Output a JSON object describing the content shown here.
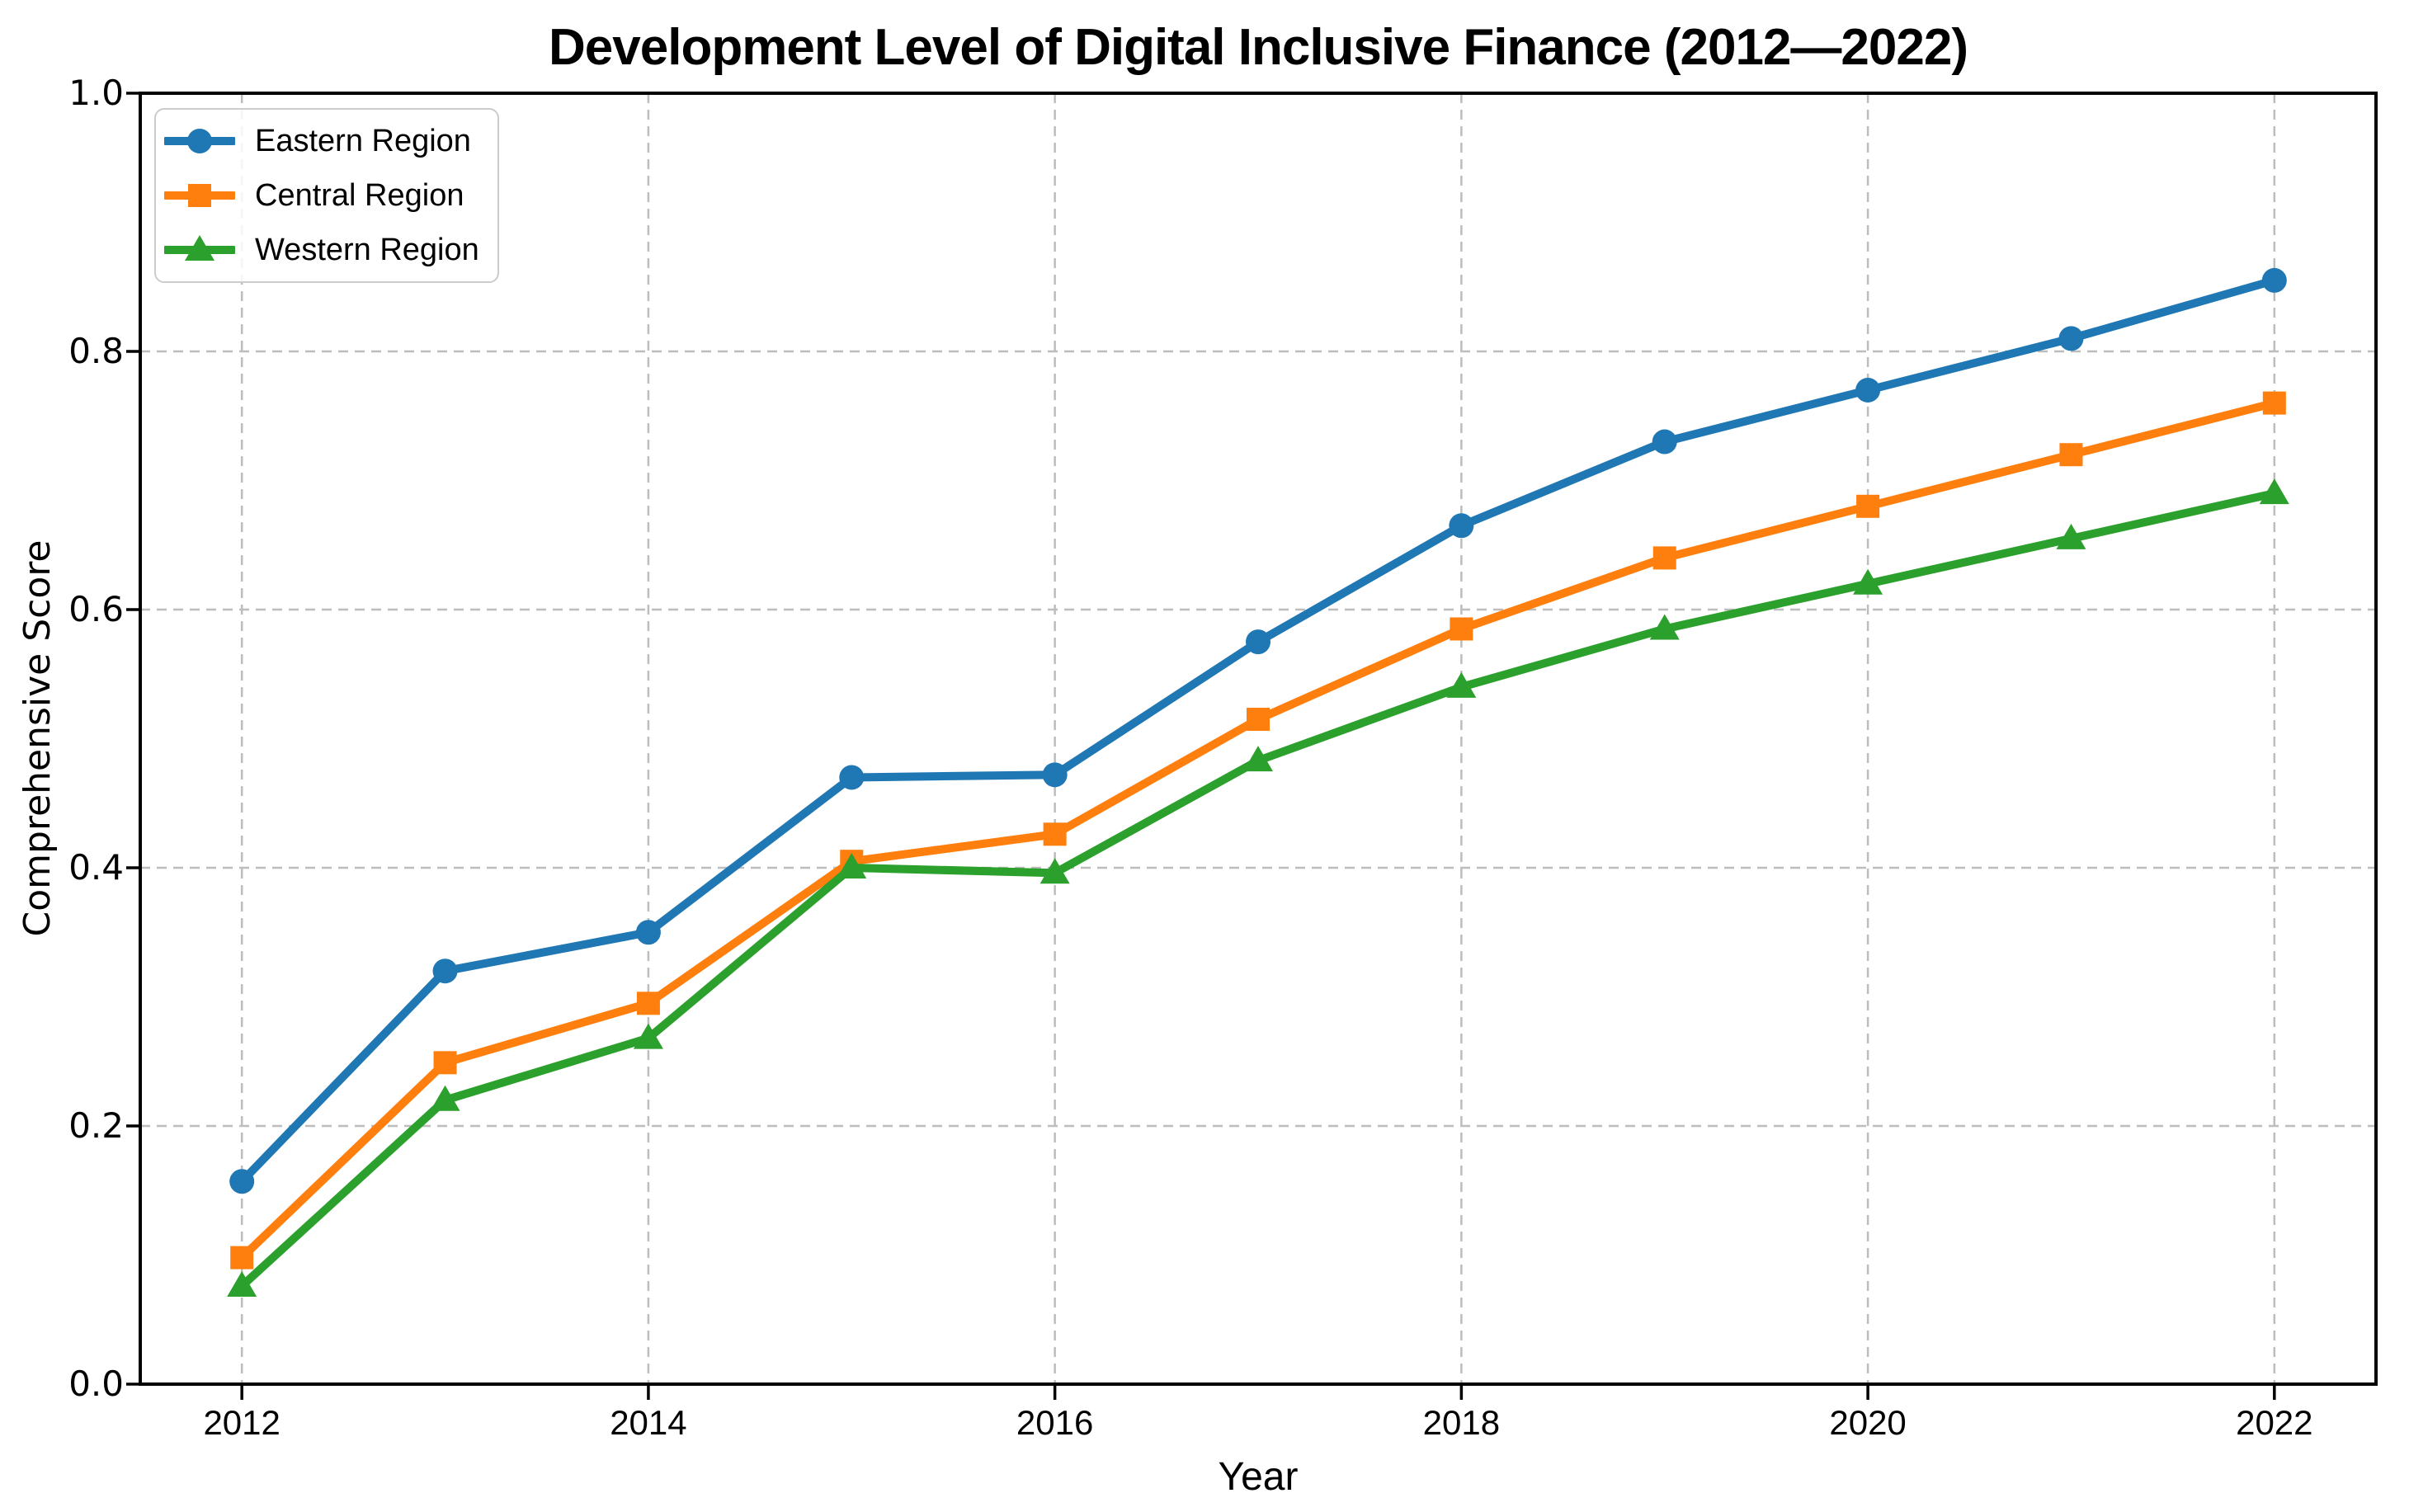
{
  "chart_data": {
    "type": "line",
    "title": "Development Level of Digital Inclusive Finance (2012—2022)",
    "xlabel": "Year",
    "ylabel": "Comprehensive Score",
    "x": [
      2012,
      2013,
      2014,
      2015,
      2016,
      2017,
      2018,
      2019,
      2020,
      2021,
      2022
    ],
    "xtick_labels": [
      "2012",
      "2014",
      "2016",
      "2018",
      "2020",
      "2022"
    ],
    "ytick_labels": [
      "0.0",
      "0.2",
      "0.4",
      "0.6",
      "0.8",
      "1.0"
    ],
    "yticks": [
      0.0,
      0.2,
      0.4,
      0.6,
      0.8,
      1.0
    ],
    "ylim": [
      0.0,
      1.0
    ],
    "grid": true,
    "grid_style": "dashed",
    "grid_color": "#bdbdbd",
    "legend_position": "upper left",
    "series": [
      {
        "name": "Eastern Region",
        "color": "#1f77b4",
        "marker": "circle",
        "values": [
          0.157,
          0.32,
          0.35,
          0.47,
          0.472,
          0.575,
          0.665,
          0.73,
          0.77,
          0.81,
          0.855
        ]
      },
      {
        "name": "Central Region",
        "color": "#ff7f0e",
        "marker": "square",
        "values": [
          0.098,
          0.249,
          0.295,
          0.405,
          0.426,
          0.515,
          0.585,
          0.64,
          0.68,
          0.72,
          0.76
        ]
      },
      {
        "name": "Western Region",
        "color": "#2ca02c",
        "marker": "triangle",
        "values": [
          0.076,
          0.22,
          0.268,
          0.4,
          0.396,
          0.483,
          0.54,
          0.585,
          0.62,
          0.655,
          0.69
        ]
      }
    ]
  }
}
